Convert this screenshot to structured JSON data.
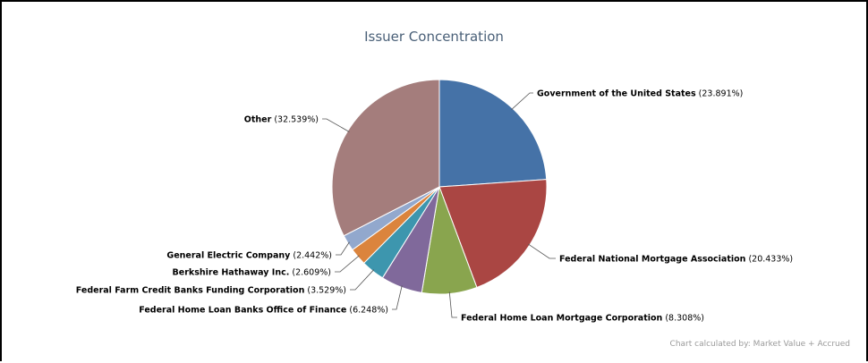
{
  "chart_data": {
    "type": "pie",
    "title": "Issuer Concentration",
    "footer": "Chart calculated by: Market Value + Accrued",
    "slices": [
      {
        "name": "Government of the United States",
        "value": 23.891,
        "display": "(23.891%)",
        "color": "#4572a7"
      },
      {
        "name": "Federal National Mortgage Association",
        "value": 20.433,
        "display": "(20.433%)",
        "color": "#aa4643"
      },
      {
        "name": "Federal Home Loan Mortgage Corporation",
        "value": 8.308,
        "display": "(8.308%)",
        "color": "#89a54e"
      },
      {
        "name": "Federal Home Loan Banks Office of Finance",
        "value": 6.248,
        "display": "(6.248%)",
        "color": "#80699b"
      },
      {
        "name": "Federal Farm Credit Banks Funding Corporation",
        "value": 3.529,
        "display": "(3.529%)",
        "color": "#3d96ae"
      },
      {
        "name": "Berkshire Hathaway Inc.",
        "value": 2.609,
        "display": "(2.609%)",
        "color": "#db843d"
      },
      {
        "name": "General Electric Company",
        "value": 2.442,
        "display": "(2.442%)",
        "color": "#92a8cd"
      },
      {
        "name": "Other",
        "value": 32.539,
        "display": "(32.539%)",
        "color": "#a47d7c"
      }
    ]
  }
}
